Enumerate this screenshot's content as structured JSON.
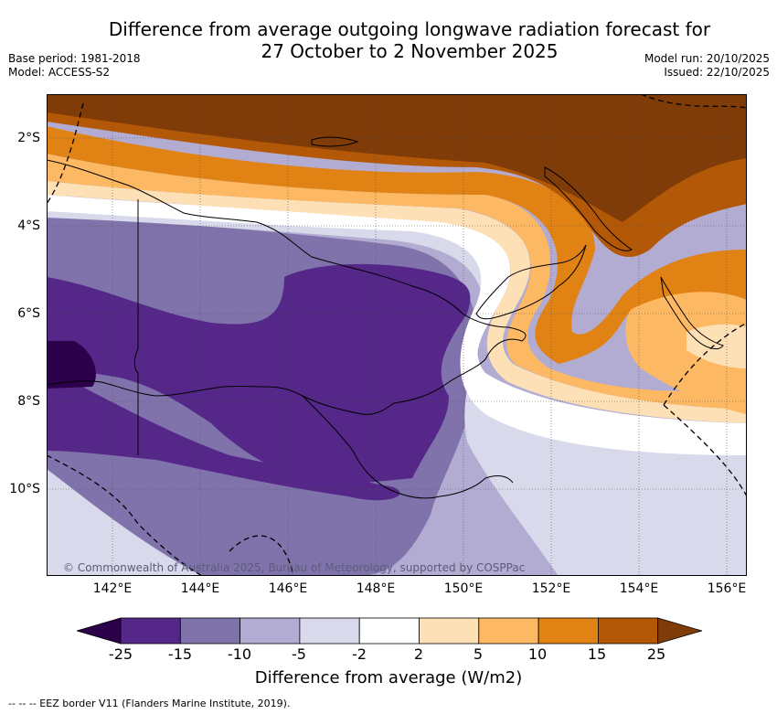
{
  "header": {
    "title_line1": "Difference from average outgoing longwave radiation forecast for",
    "title_line2": "27 October to 2 November 2025",
    "base_period": "Base period: 1981-2018",
    "model": "Model: ACCESS-S2",
    "model_run": "Model run: 20/10/2025",
    "issued": "Issued: 22/10/2025"
  },
  "map": {
    "region": "Papua New Guinea and surrounds",
    "lat_labels": [
      "2°S",
      "4°S",
      "6°S",
      "8°S",
      "10°S"
    ],
    "lon_labels": [
      "142°E",
      "144°E",
      "146°E",
      "148°E",
      "150°E",
      "152°E",
      "154°E",
      "156°E"
    ],
    "lon_range": [
      140.5,
      156.5
    ],
    "lat_range": [
      -1.0,
      -12.0
    ],
    "copyright": "© Commonwealth of Australia 2025, Bureau of Meteorology, supported by COSPPac"
  },
  "colorbar": {
    "ticks": [
      "-25",
      "-15",
      "-10",
      "-5",
      "-2",
      "2",
      "5",
      "10",
      "15",
      "25"
    ],
    "colors": [
      "#2d004b",
      "#542788",
      "#8073ac",
      "#b2abd2",
      "#d8daeb",
      "#ffffff",
      "#fee0b6",
      "#fdb863",
      "#e08214",
      "#b35806",
      "#7f3b08"
    ],
    "label": "Difference from average (W/m2)"
  },
  "footnote": "-- -- -- EEZ border V11 (Flanders Marine Institute, 2019)."
}
